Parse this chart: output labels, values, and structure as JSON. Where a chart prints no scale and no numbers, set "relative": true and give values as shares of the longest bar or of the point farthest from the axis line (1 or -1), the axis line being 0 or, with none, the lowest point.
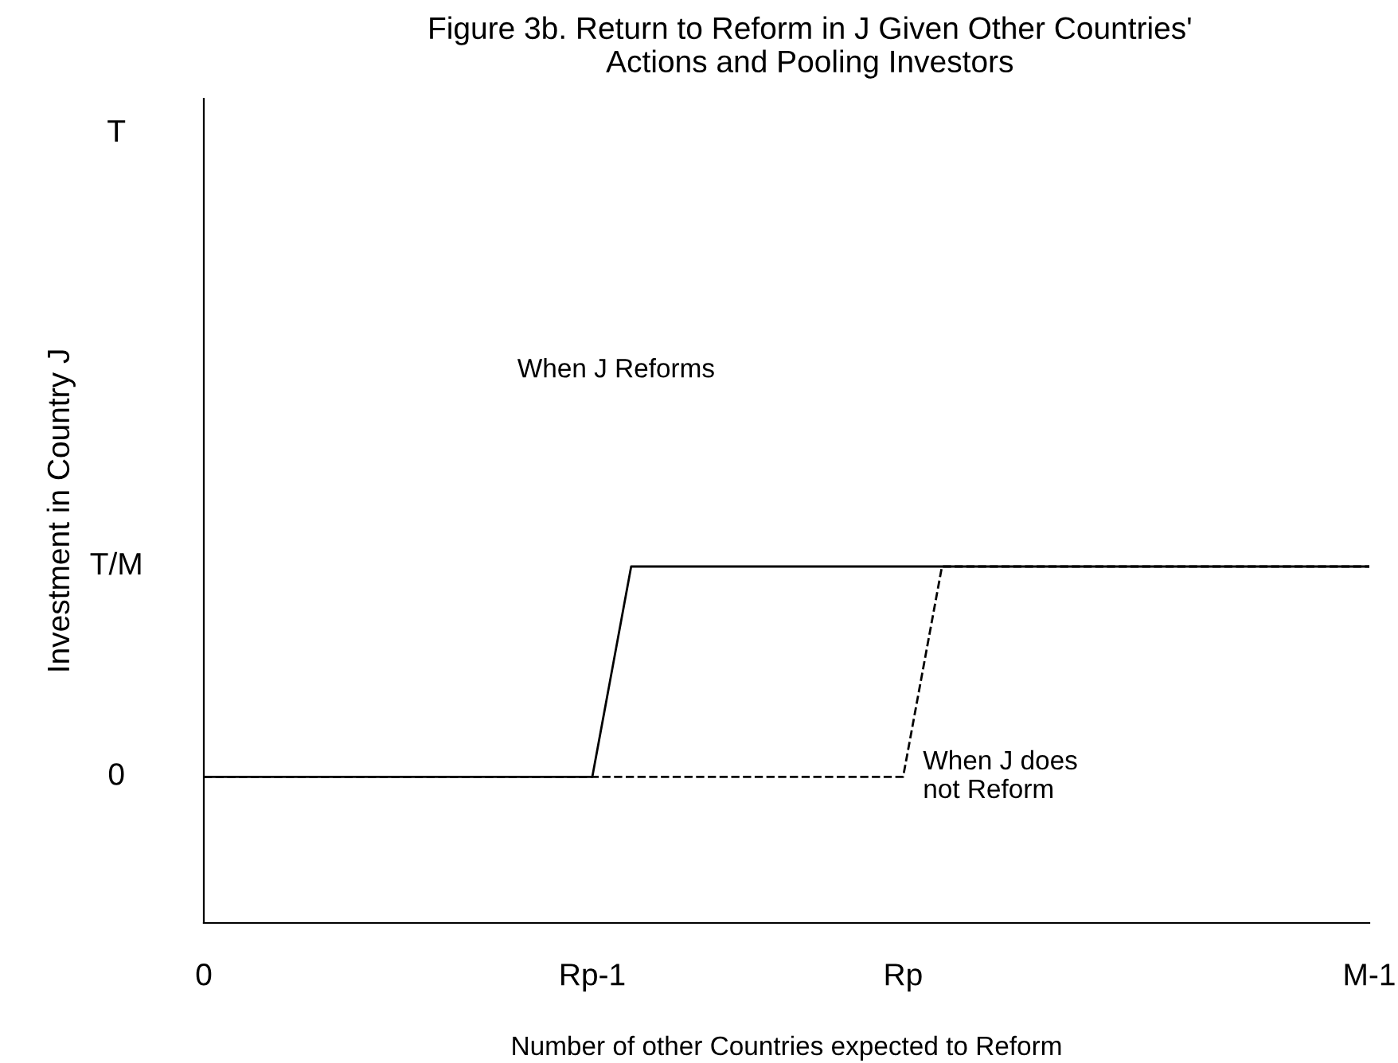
{
  "chart_data": {
    "type": "line",
    "title": "Figure 3b. Return to Reform in J Given Other Countries'\nActions and Pooling Investors",
    "xlabel": "Number of other Countries expected to Reform",
    "ylabel": "Investment in Country J",
    "relative": true,
    "categories": [
      "0",
      null,
      null,
      null,
      null,
      null,
      null,
      null,
      null,
      null,
      "Rp-1",
      null,
      null,
      null,
      null,
      null,
      null,
      null,
      "Rp",
      null,
      null,
      null,
      null,
      null,
      null,
      null,
      null,
      null,
      null,
      null,
      "M-1"
    ],
    "series": [
      {
        "color": "#000000",
        "line_style": "solid",
        "values": [
          0.41,
          0.41,
          0.41,
          0.41,
          0.41,
          0.41,
          0.41,
          0.41,
          0.41,
          0.41,
          0.41,
          1,
          1,
          1,
          1,
          1,
          1,
          1,
          1,
          1,
          1,
          1,
          1,
          1,
          1,
          1,
          1,
          1,
          1,
          1,
          1
        ]
      },
      {
        "color": "#000000",
        "line_style": "dashed",
        "values": [
          0.41,
          0.41,
          0.41,
          0.41,
          0.41,
          0.41,
          0.41,
          0.41,
          0.41,
          0.41,
          0.41,
          0.41,
          0.41,
          0.41,
          0.41,
          0.41,
          0.41,
          0.41,
          0.41,
          1,
          1,
          1,
          1,
          1,
          1,
          1,
          1,
          1,
          1,
          1,
          1
        ]
      }
    ],
    "annotations": [
      "When J Reforms",
      "When J does\nnot Reform",
      "T",
      "T/M",
      "0"
    ],
    "grid": false,
    "legend": false,
    "marker": "none"
  }
}
